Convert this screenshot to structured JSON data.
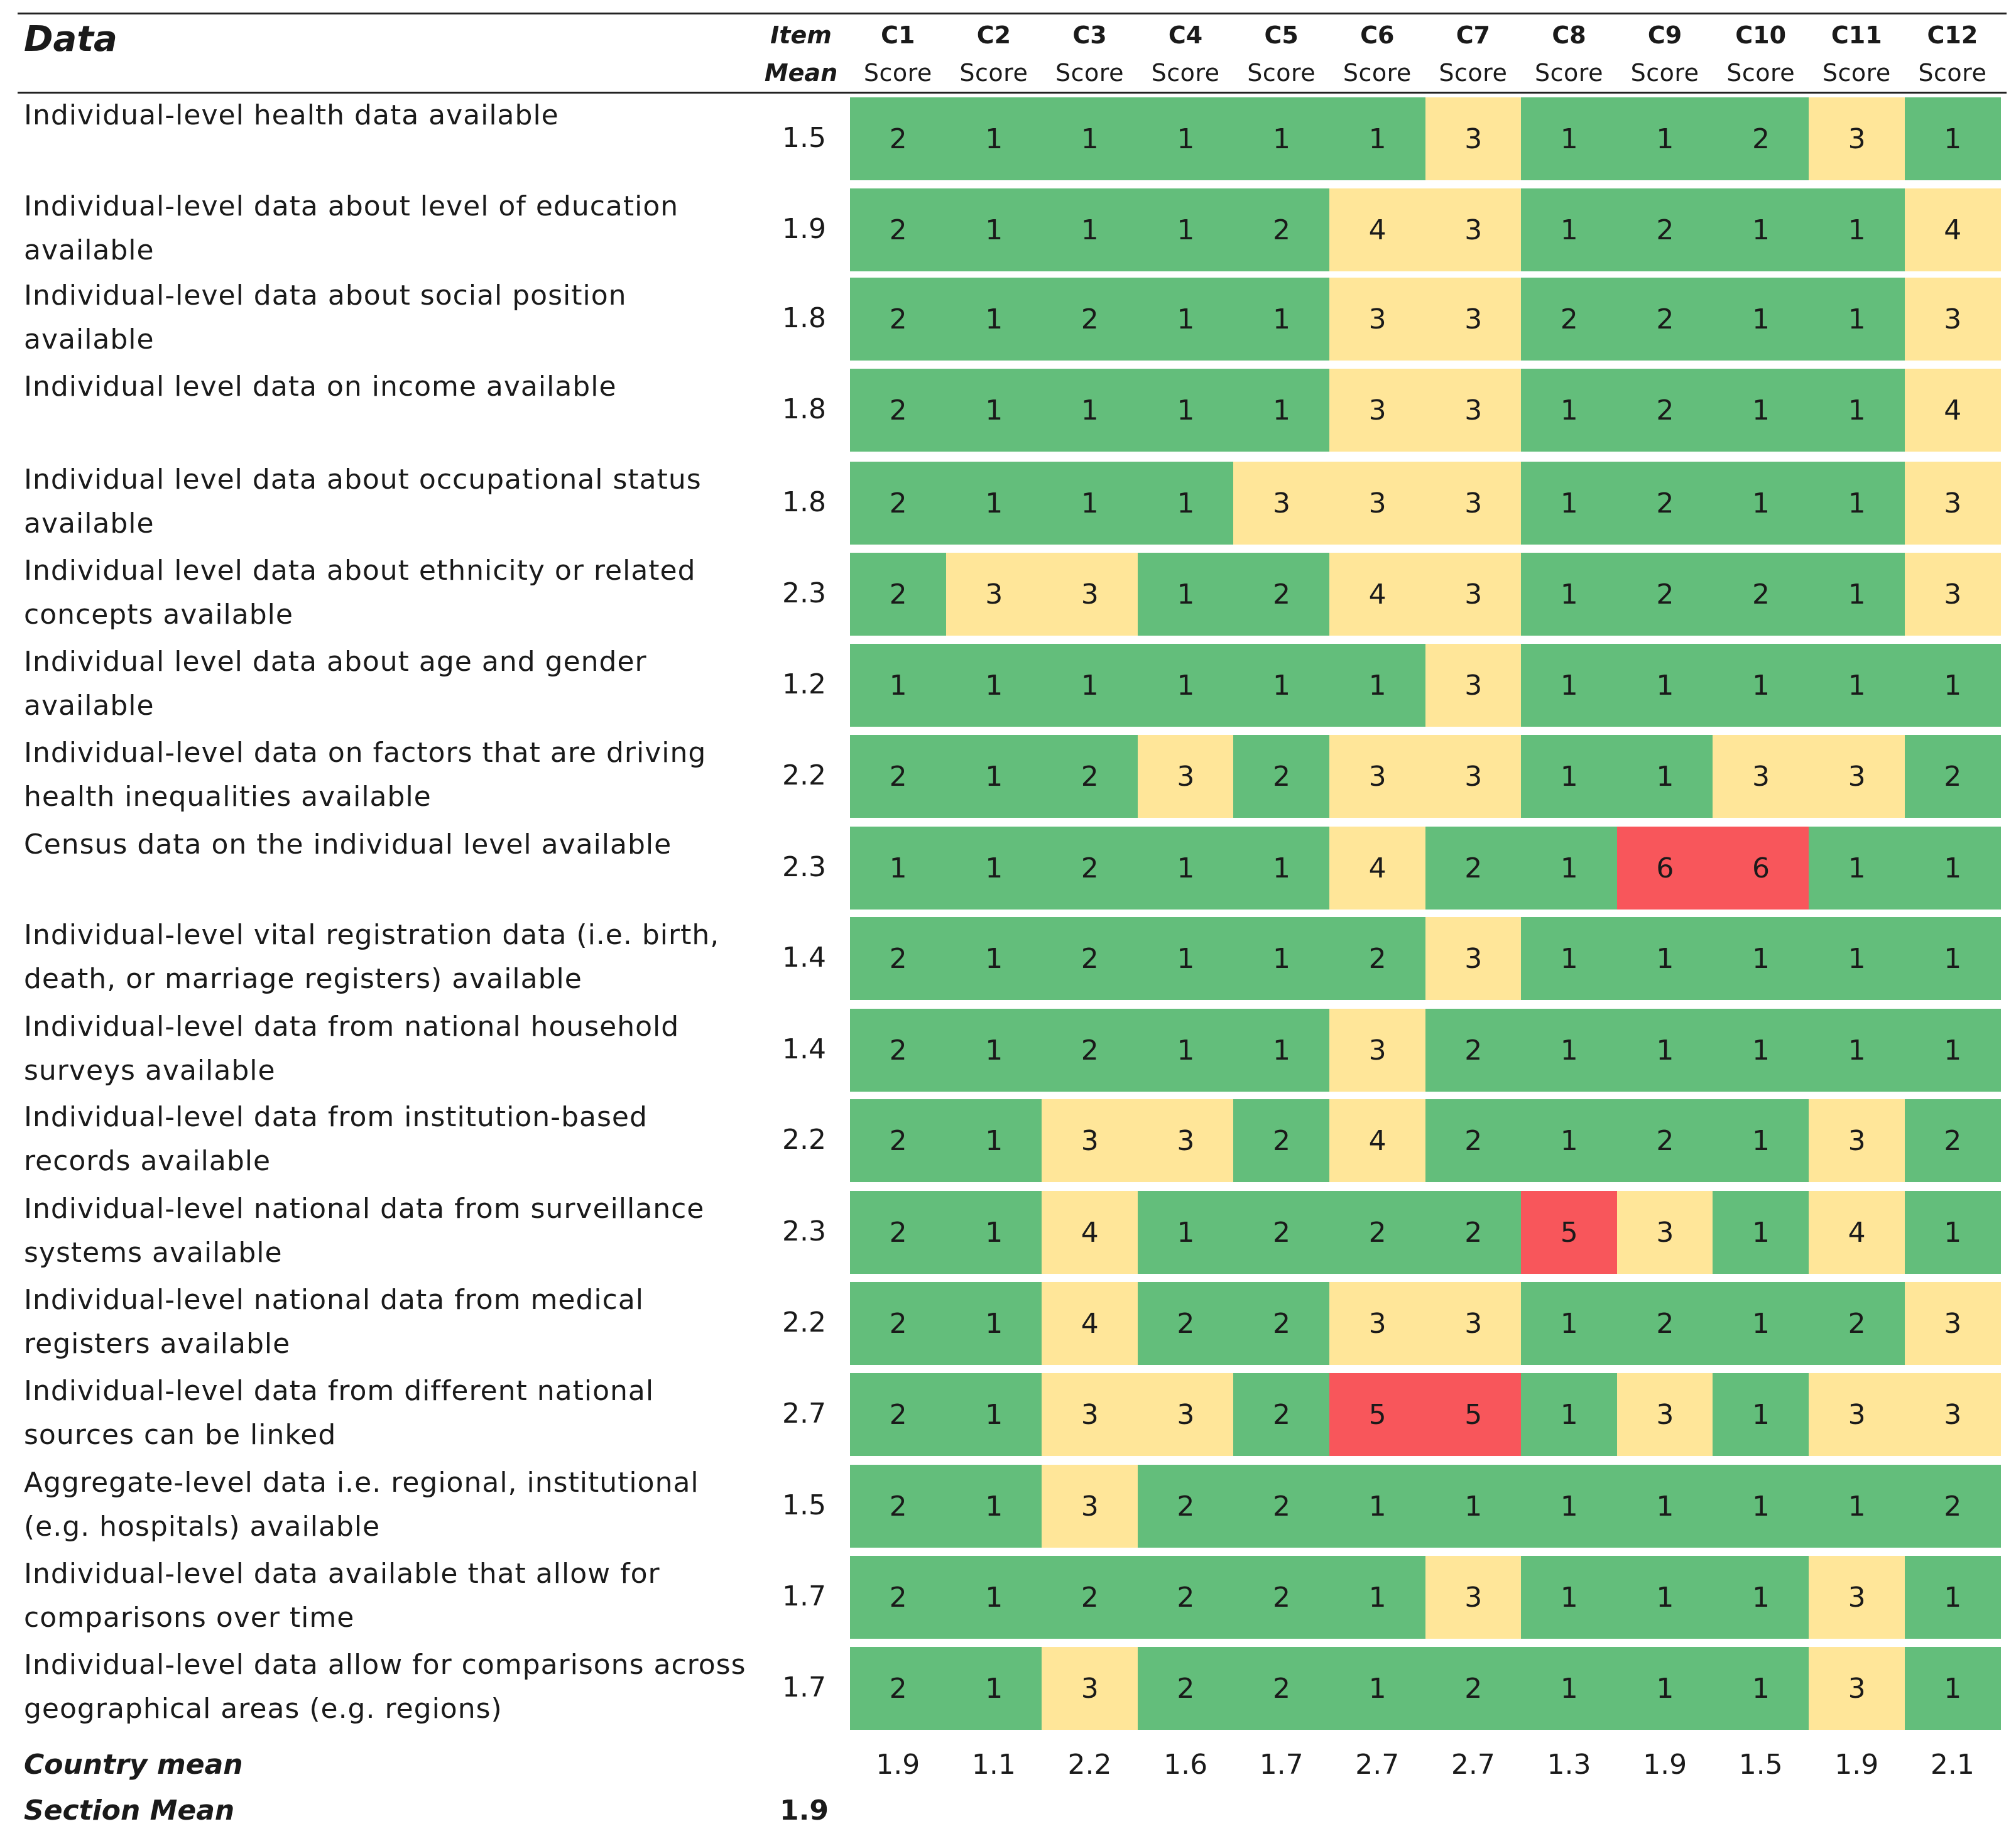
{
  "title": "Data",
  "header": {
    "item_mean_line1": "Item",
    "item_mean_line2": "Mean",
    "columns": [
      {
        "code": "C1",
        "sub": "Score"
      },
      {
        "code": "C2",
        "sub": "Score"
      },
      {
        "code": "C3",
        "sub": "Score"
      },
      {
        "code": "C4",
        "sub": "Score"
      },
      {
        "code": "C5",
        "sub": "Score"
      },
      {
        "code": "C6",
        "sub": "Score"
      },
      {
        "code": "C7",
        "sub": "Score"
      },
      {
        "code": "C8",
        "sub": "Score"
      },
      {
        "code": "C9",
        "sub": "Score"
      },
      {
        "code": "C10",
        "sub": "Score"
      },
      {
        "code": "C11",
        "sub": "Score"
      },
      {
        "code": "C12",
        "sub": "Score"
      }
    ]
  },
  "colors": {
    "low": "#63be7b",
    "mid": "#ffe699",
    "high": "#f8565b"
  },
  "rows": [
    {
      "label": "Individual-level health data available",
      "mean": "1.5",
      "scores": [
        2,
        1,
        1,
        1,
        1,
        1,
        3,
        1,
        1,
        2,
        3,
        1
      ]
    },
    {
      "label": "Individual-level data about level of education available",
      "mean": "1.9",
      "scores": [
        2,
        1,
        1,
        1,
        2,
        4,
        3,
        1,
        2,
        1,
        1,
        4
      ]
    },
    {
      "label": "Individual-level data about social position available",
      "mean": "1.8",
      "scores": [
        2,
        1,
        2,
        1,
        1,
        3,
        3,
        2,
        2,
        1,
        1,
        3
      ]
    },
    {
      "label": "Individual level data on income available",
      "mean": "1.8",
      "scores": [
        2,
        1,
        1,
        1,
        1,
        3,
        3,
        1,
        2,
        1,
        1,
        4
      ]
    },
    {
      "label": "Individual level data about occupational status available",
      "mean": "1.8",
      "scores": [
        2,
        1,
        1,
        1,
        3,
        3,
        3,
        1,
        2,
        1,
        1,
        3
      ]
    },
    {
      "label": "Individual level data about ethnicity or related concepts available",
      "mean": "2.3",
      "scores": [
        2,
        3,
        3,
        1,
        2,
        4,
        3,
        1,
        2,
        2,
        1,
        3
      ]
    },
    {
      "label": "Individual level data about age and gender available",
      "mean": "1.2",
      "scores": [
        1,
        1,
        1,
        1,
        1,
        1,
        3,
        1,
        1,
        1,
        1,
        1
      ]
    },
    {
      "label": "Individual-level data on factors that are driving health inequalities available",
      "mean": "2.2",
      "scores": [
        2,
        1,
        2,
        3,
        2,
        3,
        3,
        1,
        1,
        3,
        3,
        2
      ]
    },
    {
      "label": "Census data on the individual level available",
      "mean": "2.3",
      "scores": [
        1,
        1,
        2,
        1,
        1,
        4,
        2,
        1,
        6,
        6,
        1,
        1
      ]
    },
    {
      "label": "Individual-level vital registration data (i.e. birth, death, or marriage registers) available",
      "mean": "1.4",
      "scores": [
        2,
        1,
        2,
        1,
        1,
        2,
        3,
        1,
        1,
        1,
        1,
        1
      ]
    },
    {
      "label": "Individual-level data from national household surveys available",
      "mean": "1.4",
      "scores": [
        2,
        1,
        2,
        1,
        1,
        3,
        2,
        1,
        1,
        1,
        1,
        1
      ]
    },
    {
      "label": "Individual-level data from institution-based records available",
      "mean": "2.2",
      "scores": [
        2,
        1,
        3,
        3,
        2,
        4,
        2,
        1,
        2,
        1,
        3,
        2
      ]
    },
    {
      "label": "Individual-level national data from surveillance systems available",
      "mean": "2.3",
      "scores": [
        2,
        1,
        4,
        1,
        2,
        2,
        2,
        5,
        3,
        1,
        4,
        1
      ]
    },
    {
      "label": "Individual-level national data from medical registers available",
      "mean": "2.2",
      "scores": [
        2,
        1,
        4,
        2,
        2,
        3,
        3,
        1,
        2,
        1,
        2,
        3
      ]
    },
    {
      "label": "Individual-level data from different national sources can be linked",
      "mean": "2.7",
      "scores": [
        2,
        1,
        3,
        3,
        2,
        5,
        5,
        1,
        3,
        1,
        3,
        3
      ]
    },
    {
      "label": "Aggregate-level data i.e. regional, institutional (e.g. hospitals) available",
      "mean": "1.5",
      "scores": [
        2,
        1,
        3,
        2,
        2,
        1,
        1,
        1,
        1,
        1,
        1,
        2
      ]
    },
    {
      "label": "Individual-level data available that allow for comparisons over time",
      "mean": "1.7",
      "scores": [
        2,
        1,
        2,
        2,
        2,
        1,
        3,
        1,
        1,
        1,
        3,
        1
      ]
    },
    {
      "label": "Individual-level data allow for comparisons across geographical areas (e.g. regions)",
      "mean": "1.7",
      "scores": [
        2,
        1,
        3,
        2,
        2,
        1,
        2,
        1,
        1,
        1,
        3,
        1
      ]
    }
  ],
  "footer": {
    "country_mean_label": "Country mean",
    "country_means": [
      "1.9",
      "1.1",
      "2.2",
      "1.6",
      "1.7",
      "2.7",
      "2.7",
      "1.3",
      "1.9",
      "1.5",
      "1.9",
      "2.1"
    ],
    "section_mean_label": "Section Mean",
    "section_mean": "1.9"
  }
}
